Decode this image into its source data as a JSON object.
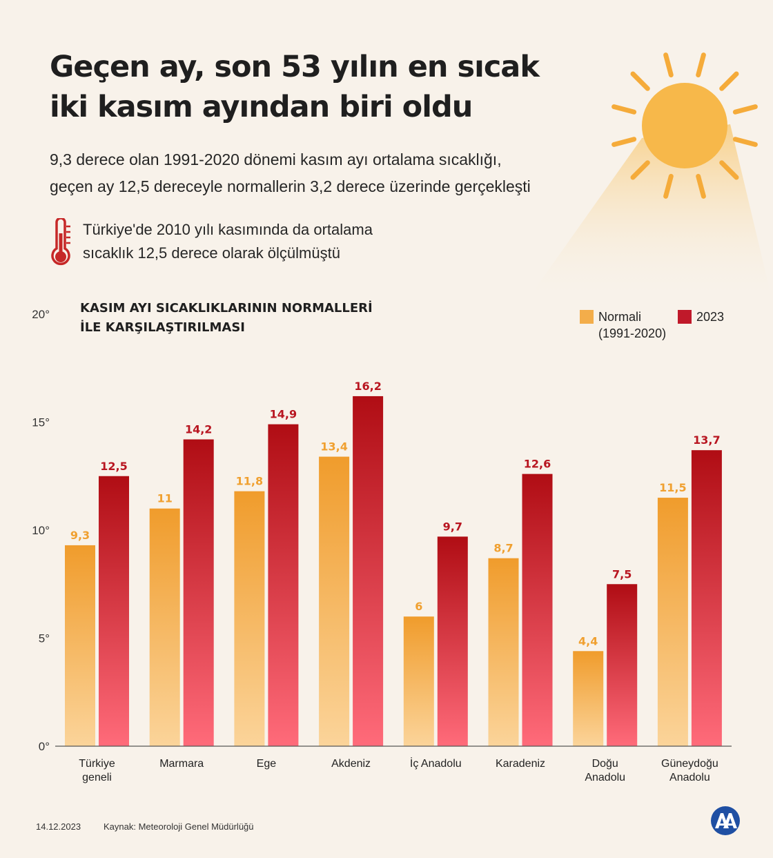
{
  "header": {
    "title_line1": "Geçen ay, son 53 yılın en sıcak",
    "title_line2": "iki kasım ayından biri oldu",
    "subtitle_line1": "9,3 derece olan 1991-2020 dönemi kasım ayı ortalama sıcaklığı,",
    "subtitle_line2": "geçen ay 12,5 dereceyle normallerin 3,2 derece üzerinde gerçekleşti",
    "note_line1": "Türkiye'de 2010 yılı kasımında da ortalama",
    "note_line2": "sıcaklık 12,5 derece olarak ölçülmüştü"
  },
  "icons": {
    "sun": "sun-icon",
    "thermometer": "thermometer-icon",
    "logo": "aa-logo-icon"
  },
  "colors": {
    "background": "#f8f2ea",
    "normal_top": "#f09c2c",
    "normal_bottom": "#fbd49a",
    "year_top": "#b00d14",
    "year_bottom": "#ff6b7a",
    "normal_label": "#f0a030",
    "year_label": "#b81520",
    "sun": "#f5ab3a",
    "thermometer": "#c62828"
  },
  "chart_data": {
    "type": "bar",
    "title_line1": "KASIM AYI SICAKLIKLARININ NORMALLERİ",
    "title_line2": "İLE KARŞILAŞTIRILMASI",
    "categories": [
      [
        "Türkiye",
        "geneli"
      ],
      [
        "Marmara"
      ],
      [
        "Ege"
      ],
      [
        "Akdeniz"
      ],
      [
        "İç Anadolu"
      ],
      [
        "Karadeniz"
      ],
      [
        "Doğu",
        "Anadolu"
      ],
      [
        "Güneydoğu",
        "Anadolu"
      ]
    ],
    "series": [
      {
        "name_line1": "Normali",
        "name_line2": "(1991-2020)",
        "values": [
          9.3,
          11,
          11.8,
          13.4,
          6,
          8.7,
          4.4,
          11.5
        ],
        "labels": [
          "9,3",
          "11",
          "11,8",
          "13,4",
          "6",
          "8,7",
          "4,4",
          "11,5"
        ]
      },
      {
        "name_line1": "2023",
        "values": [
          12.5,
          14.2,
          14.9,
          16.2,
          9.7,
          12.6,
          7.5,
          13.7
        ],
        "labels": [
          "12,5",
          "14,2",
          "14,9",
          "16,2",
          "9,7",
          "12,6",
          "7,5",
          "13,7"
        ]
      }
    ],
    "yticks": [
      0,
      5,
      10,
      15,
      20
    ],
    "ytick_labels": [
      "0°",
      "5°",
      "10°",
      "15°",
      "20°"
    ],
    "ylim": [
      0,
      20
    ],
    "grid": false,
    "legend": "top-right"
  },
  "footer": {
    "date": "14.12.2023",
    "source": "Kaynak: Meteoroloji Genel Müdürlüğü"
  }
}
